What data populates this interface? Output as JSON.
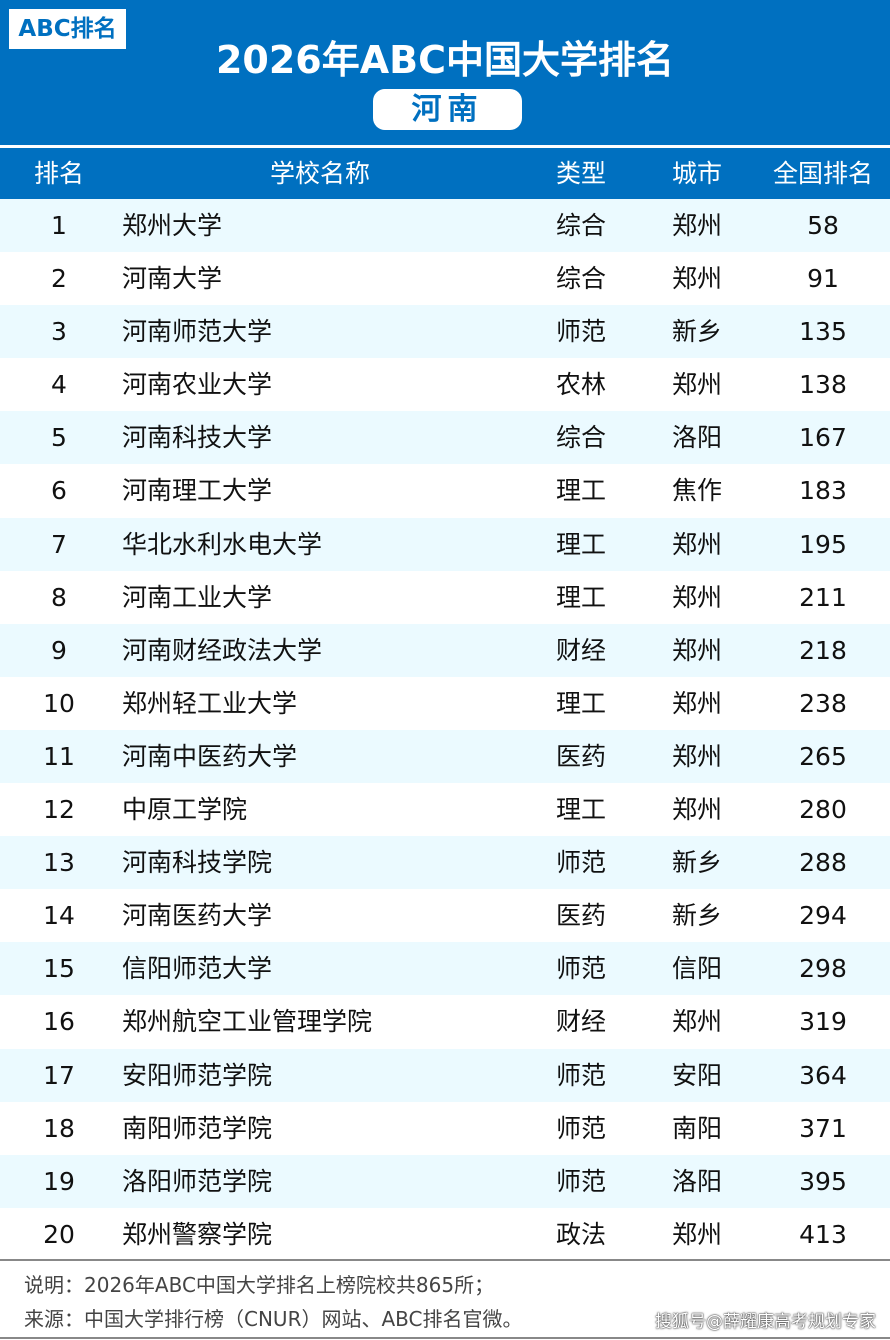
{
  "header": {
    "logo": "ABC排名",
    "title": "2026年ABC中国大学排名",
    "province": "河南"
  },
  "columns": [
    "排名",
    "学校名称",
    "类型",
    "城市",
    "全国排名"
  ],
  "rows": [
    [
      "1",
      "郑州大学",
      "综合",
      "郑州",
      "58"
    ],
    [
      "2",
      "河南大学",
      "综合",
      "郑州",
      "91"
    ],
    [
      "3",
      "河南师范大学",
      "师范",
      "新乡",
      "135"
    ],
    [
      "4",
      "河南农业大学",
      "农林",
      "郑州",
      "138"
    ],
    [
      "5",
      "河南科技大学",
      "综合",
      "洛阳",
      "167"
    ],
    [
      "6",
      "河南理工大学",
      "理工",
      "焦作",
      "183"
    ],
    [
      "7",
      "华北水利水电大学",
      "理工",
      "郑州",
      "195"
    ],
    [
      "8",
      "河南工业大学",
      "理工",
      "郑州",
      "211"
    ],
    [
      "9",
      "河南财经政法大学",
      "财经",
      "郑州",
      "218"
    ],
    [
      "10",
      "郑州轻工业大学",
      "理工",
      "郑州",
      "238"
    ],
    [
      "11",
      "河南中医药大学",
      "医药",
      "郑州",
      "265"
    ],
    [
      "12",
      "中原工学院",
      "理工",
      "郑州",
      "280"
    ],
    [
      "13",
      "河南科技学院",
      "师范",
      "新乡",
      "288"
    ],
    [
      "14",
      "河南医药大学",
      "医药",
      "新乡",
      "294"
    ],
    [
      "15",
      "信阳师范大学",
      "师范",
      "信阳",
      "298"
    ],
    [
      "16",
      "郑州航空工业管理学院",
      "财经",
      "郑州",
      "319"
    ],
    [
      "17",
      "安阳师范学院",
      "师范",
      "安阳",
      "364"
    ],
    [
      "18",
      "南阳师范学院",
      "师范",
      "南阳",
      "371"
    ],
    [
      "19",
      "洛阳师范学院",
      "师范",
      "洛阳",
      "395"
    ],
    [
      "20",
      "郑州警察学院",
      "政法",
      "郑州",
      "413"
    ]
  ],
  "footer": {
    "note": "说明：2026年ABC中国大学排名上榜院校共865所；",
    "source": "来源：中国大学排行榜（CNUR）网站、ABC排名官微。",
    "watermark": "搜狐号@薛耀康高考规划专家"
  },
  "colors": {
    "brand": "#0070c0",
    "stripe": "#ebfaff"
  }
}
